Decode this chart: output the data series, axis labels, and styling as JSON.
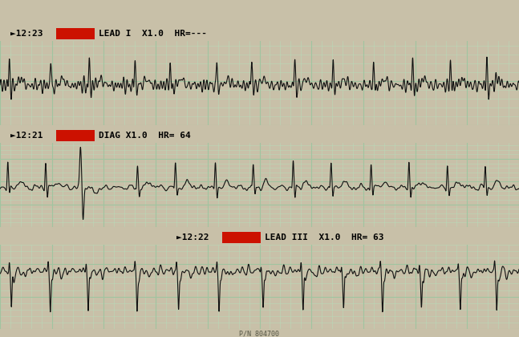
{
  "bg_color": "#cde0cd",
  "grid_major_color": "#a0c4a0",
  "grid_minor_color": "#b8d8b8",
  "line_color": "#111111",
  "header_bg": "#cc1100",
  "outer_bg": "#c8c0a8",
  "strip1_time": "►12:23",
  "strip1_post": "LEAD I  X1.0  HR=---",
  "strip2_time": "►12:21",
  "strip2_post": "DIAG X1.0  HR= 64",
  "strip3_time": "►12:22",
  "strip3_post": "LEAD III  X1.0  HR= 63",
  "strip3_indent": true,
  "footer_text": "P/N 804700",
  "white_bar_color": "#f0f0e8"
}
